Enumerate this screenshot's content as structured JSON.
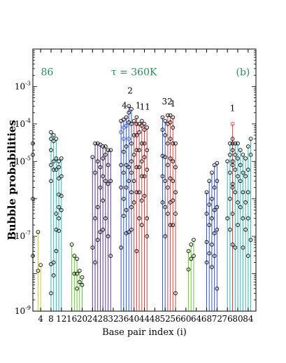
{
  "chart_data": {
    "type": "scatter",
    "ylabel": "Bubble probabilities",
    "xlabel": "Base pair index (i)",
    "yscale": "log",
    "ylim": [
      1e-09,
      0.01
    ],
    "xlim": [
      1,
      87
    ],
    "grid": false,
    "x_ticks": [
      "4",
      "8",
      "12",
      "16",
      "20",
      "24",
      "28",
      "32",
      "36",
      "40",
      "44",
      "48",
      "52",
      "56",
      "60",
      "64",
      "68",
      "72",
      "76",
      "80",
      "84"
    ],
    "x_tick_values": [
      4,
      8,
      12,
      16,
      20,
      24,
      28,
      32,
      36,
      40,
      44,
      48,
      52,
      56,
      60,
      64,
      68,
      72,
      76,
      80,
      84
    ],
    "y_ticks": [
      {
        "value": 1e-09,
        "mantissa": "10",
        "exp": "-9"
      },
      {
        "value": 1e-07,
        "mantissa": "10",
        "exp": "-7"
      },
      {
        "value": 1e-05,
        "mantissa": "10",
        "exp": "-5"
      },
      {
        "value": 0.0001,
        "mantissa": "10",
        "exp": "-4"
      },
      {
        "value": 0.001,
        "mantissa": "10",
        "exp": "-3"
      }
    ],
    "annotations": [
      {
        "text": "86",
        "x": 6.5,
        "y": 0.002,
        "color": "#2e8b57"
      },
      {
        "text": "τ = 360K",
        "x": 40,
        "y": 0.002,
        "color": "#2e8b57"
      },
      {
        "text": "(b)",
        "x": 82,
        "y": 0.002,
        "color": "#2e8b57"
      },
      {
        "text": "2",
        "x": 38.5,
        "y": 0.00065,
        "color": "#000000"
      },
      {
        "text": "4",
        "x": 36.3,
        "y": 0.00026,
        "color": "#000000"
      },
      {
        "text": "1",
        "x": 41.6,
        "y": 0.00026,
        "color": "#000000"
      },
      {
        "text": "11",
        "x": 44.2,
        "y": 0.00024,
        "color": "#000000"
      },
      {
        "text": "32",
        "x": 52.8,
        "y": 0.00033,
        "color": "#000000"
      },
      {
        "text": "1",
        "x": 55.0,
        "y": 0.00029,
        "color": "#000000"
      },
      {
        "text": "1",
        "x": 78.0,
        "y": 0.00022,
        "color": "#000000"
      }
    ],
    "series": [
      {
        "color": "#cccc33",
        "points": [
          [
            1,
            3e-05
          ],
          [
            1,
            1.5e-05
          ],
          [
            1,
            1e-06
          ],
          [
            1,
            3e-08
          ],
          [
            3,
            1.3e-07
          ],
          [
            3,
            1.2e-08
          ],
          [
            4,
            1.7e-08
          ]
        ]
      },
      {
        "color": "#33b5b5",
        "points": [
          [
            8,
            6e-05
          ],
          [
            8,
            4e-05
          ],
          [
            8,
            2e-05
          ],
          [
            8,
            8e-06
          ],
          [
            8,
            3e-06
          ],
          [
            8,
            1.8e-08
          ],
          [
            8,
            3e-09
          ],
          [
            9,
            3.5e-05
          ],
          [
            9,
            5e-05
          ],
          [
            9,
            1e-05
          ],
          [
            9,
            6e-06
          ],
          [
            9,
            2e-08
          ],
          [
            9,
            9e-09
          ],
          [
            10,
            4e-05
          ],
          [
            10,
            1.2e-05
          ],
          [
            10,
            6e-06
          ],
          [
            10,
            4e-07
          ],
          [
            10,
            1.5e-07
          ],
          [
            10,
            4e-08
          ],
          [
            11,
            1e-05
          ],
          [
            11,
            7e-06
          ],
          [
            11,
            3.5e-06
          ],
          [
            11,
            1.3e-06
          ],
          [
            11,
            6e-07
          ],
          [
            11,
            3e-07
          ],
          [
            11,
            1.4e-07
          ],
          [
            12,
            1.2e-05
          ],
          [
            12,
            4e-06
          ],
          [
            12,
            1.2e-06
          ],
          [
            12,
            5e-07
          ]
        ]
      },
      {
        "color": "#66cc33",
        "points": [
          [
            16,
            6e-08
          ],
          [
            17,
            3e-08
          ],
          [
            17,
            1e-08
          ],
          [
            18,
            2.5e-08
          ],
          [
            18,
            4e-09
          ],
          [
            18,
            1e-08
          ],
          [
            19,
            1.2e-08
          ],
          [
            19,
            6e-09
          ],
          [
            20,
            8e-09
          ],
          [
            20,
            5e-09
          ]
        ]
      },
      {
        "color": "#5b3a8f",
        "points": [
          [
            24,
            1.3e-05
          ],
          [
            24,
            5e-08
          ],
          [
            25,
            3e-05
          ],
          [
            25,
            5e-06
          ],
          [
            25,
            3e-07
          ],
          [
            25,
            2e-08
          ],
          [
            26,
            3e-05
          ],
          [
            26,
            1e-05
          ],
          [
            26,
            6e-07
          ],
          [
            26,
            8e-08
          ],
          [
            27,
            2.8e-05
          ],
          [
            27,
            7e-06
          ],
          [
            27,
            2e-06
          ],
          [
            27,
            1.3e-07
          ],
          [
            28,
            2.5e-05
          ],
          [
            28,
            1.2e-05
          ],
          [
            28,
            4e-06
          ],
          [
            28,
            9e-07
          ],
          [
            28,
            1.5e-07
          ],
          [
            29,
            2.5e-05
          ],
          [
            29,
            1.5e-05
          ],
          [
            29,
            3e-06
          ],
          [
            29,
            3e-07
          ],
          [
            30,
            2e-05
          ],
          [
            30,
            8e-06
          ],
          [
            30,
            2.5e-06
          ],
          [
            30,
            1e-07
          ],
          [
            31,
            2e-05
          ],
          [
            31,
            3e-06
          ],
          [
            31,
            3e-08
          ]
        ]
      },
      {
        "color": "#3355cc",
        "points": [
          [
            35,
            0.00012
          ],
          [
            35,
            6e-05
          ],
          [
            35,
            8e-06
          ],
          [
            35,
            2e-06
          ],
          [
            35,
            5e-08
          ],
          [
            36,
            0.00013
          ],
          [
            36,
            8e-05
          ],
          [
            36,
            4e-05
          ],
          [
            36,
            1.8e-05
          ],
          [
            36,
            5e-06
          ],
          [
            36,
            1e-06
          ],
          [
            36,
            3.5e-07
          ],
          [
            37,
            0.00015
          ],
          [
            37,
            9e-05
          ],
          [
            37,
            2.5e-05
          ],
          [
            37,
            8e-06
          ],
          [
            37,
            2e-06
          ],
          [
            37,
            5e-07
          ],
          [
            37,
            1.2e-07
          ],
          [
            38,
            0.0003
          ],
          [
            38,
            0.0002
          ],
          [
            38,
            0.00011
          ],
          [
            38,
            4e-05
          ],
          [
            38,
            7e-06
          ],
          [
            38,
            3e-06
          ],
          [
            38,
            1.3e-07
          ],
          [
            39,
            0.00025
          ],
          [
            39,
            0.0001
          ],
          [
            39,
            3e-05
          ],
          [
            39,
            1e-05
          ],
          [
            39,
            5e-06
          ],
          [
            39,
            1.5e-06
          ],
          [
            39,
            6e-07
          ],
          [
            39,
            1.5e-07
          ]
        ]
      },
      {
        "color": "#d94040",
        "points": [
          [
            40,
            0.00012
          ],
          [
            40,
            5e-05
          ],
          [
            40,
            1.5e-05
          ],
          [
            40,
            3e-06
          ],
          [
            40,
            8e-07
          ],
          [
            41,
            0.00015
          ],
          [
            41,
            0.0001
          ],
          [
            41,
            5e-05
          ],
          [
            41,
            2e-05
          ],
          [
            41,
            7e-06
          ],
          [
            41,
            1.5e-06
          ],
          [
            41,
            4e-08
          ],
          [
            42,
            0.0001
          ],
          [
            42,
            6e-05
          ],
          [
            42,
            2e-05
          ],
          [
            42,
            7e-06
          ],
          [
            42,
            1.5e-06
          ],
          [
            42,
            3e-07
          ],
          [
            43,
            0.00012
          ],
          [
            43,
            9e-05
          ],
          [
            43,
            3e-05
          ],
          [
            43,
            1e-05
          ],
          [
            43,
            4e-06
          ],
          [
            43,
            9e-07
          ],
          [
            43,
            2e-07
          ],
          [
            44,
            0.0001
          ],
          [
            44,
            7e-05
          ],
          [
            44,
            3e-05
          ],
          [
            44,
            1.3e-05
          ],
          [
            44,
            4e-06
          ],
          [
            44,
            1.2e-06
          ],
          [
            45,
            8e-05
          ],
          [
            45,
            2e-05
          ],
          [
            45,
            6e-06
          ],
          [
            45,
            3e-07
          ],
          [
            45,
            1e-07
          ]
        ]
      },
      {
        "color": "#d94040",
        "points": [
          [
            53,
            0.00017
          ],
          [
            53,
            0.0001
          ],
          [
            53,
            3e-05
          ],
          [
            53,
            8e-06
          ],
          [
            53,
            2e-06
          ],
          [
            53,
            4e-07
          ],
          [
            54,
            0.00017
          ],
          [
            54,
            0.00011
          ],
          [
            54,
            4e-05
          ],
          [
            54,
            1.2e-05
          ],
          [
            54,
            3.5e-06
          ],
          [
            54,
            8e-07
          ],
          [
            54,
            2e-07
          ],
          [
            55,
            0.00015
          ],
          [
            55,
            8e-05
          ],
          [
            55,
            3e-05
          ],
          [
            55,
            1e-05
          ],
          [
            55,
            3e-06
          ],
          [
            55,
            9e-07
          ],
          [
            55,
            2e-07
          ],
          [
            56,
            3e-05
          ],
          [
            56,
            7e-06
          ],
          [
            56,
            1.5e-06
          ],
          [
            56,
            4e-07
          ],
          [
            56,
            3e-09
          ]
        ]
      },
      {
        "color": "#3355cc",
        "points": [
          [
            51,
            0.00015
          ],
          [
            51,
            7e-05
          ],
          [
            51,
            1.4e-05
          ],
          [
            51,
            4e-06
          ],
          [
            51,
            8e-07
          ],
          [
            52,
            0.00012
          ],
          [
            52,
            5e-05
          ],
          [
            52,
            1.3e-05
          ],
          [
            52,
            3e-06
          ],
          [
            52,
            6e-07
          ],
          [
            52,
            1e-07
          ]
        ]
      },
      {
        "color": "#66cc33",
        "points": [
          [
            61,
            4e-08
          ],
          [
            61,
            1.3e-08
          ],
          [
            62,
            6e-08
          ],
          [
            62,
            2.5e-08
          ],
          [
            63,
            8e-08
          ],
          [
            63,
            3e-08
          ]
        ]
      },
      {
        "color": "#3355cc",
        "points": [
          [
            68,
            1.5e-06
          ],
          [
            68,
            4e-07
          ],
          [
            68,
            7e-08
          ],
          [
            68,
            2e-08
          ],
          [
            69,
            3e-06
          ],
          [
            69,
            7e-07
          ],
          [
            69,
            2e-07
          ],
          [
            69,
            3.5e-08
          ],
          [
            70,
            5e-06
          ],
          [
            70,
            1e-06
          ],
          [
            70,
            3e-07
          ],
          [
            70,
            6e-08
          ],
          [
            70,
            1.5e-08
          ],
          [
            71,
            8e-06
          ],
          [
            71,
            2e-06
          ],
          [
            71,
            5e-07
          ],
          [
            71,
            1.2e-07
          ],
          [
            71,
            3e-08
          ],
          [
            72,
            9e-06
          ],
          [
            72,
            3e-06
          ],
          [
            72,
            6e-07
          ],
          [
            72,
            1.5e-07
          ],
          [
            72,
            4e-09
          ]
        ]
      },
      {
        "color": "#33b5b5",
        "points": [
          [
            76,
            1e-05
          ],
          [
            76,
            3e-07
          ],
          [
            77,
            3e-05
          ],
          [
            77,
            1.5e-05
          ],
          [
            77,
            5e-06
          ],
          [
            77,
            1e-06
          ],
          [
            77,
            1.5e-07
          ],
          [
            78,
            4e-05
          ],
          [
            78,
            2e-05
          ],
          [
            78,
            8e-06
          ],
          [
            78,
            2.5e-06
          ],
          [
            78,
            4e-07
          ],
          [
            79,
            3e-05
          ],
          [
            79,
            1.5e-05
          ],
          [
            79,
            6e-06
          ],
          [
            79,
            1.5e-06
          ],
          [
            79,
            5e-08
          ],
          [
            80,
            3e-05
          ],
          [
            80,
            1.2e-05
          ],
          [
            80,
            4e-06
          ],
          [
            80,
            8e-07
          ],
          [
            80,
            2e-07
          ],
          [
            81,
            2e-05
          ],
          [
            81,
            8e-06
          ],
          [
            81,
            3e-06
          ],
          [
            81,
            6e-07
          ],
          [
            82,
            1.5e-05
          ],
          [
            82,
            5e-06
          ],
          [
            82,
            1.5e-06
          ],
          [
            82,
            3e-07
          ],
          [
            82,
            5e-08
          ],
          [
            83,
            1.2e-05
          ],
          [
            83,
            4e-06
          ],
          [
            83,
            8e-07
          ],
          [
            83,
            1.5e-07
          ],
          [
            84,
            2.5e-05
          ],
          [
            84,
            6e-06
          ],
          [
            84,
            1.5e-06
          ],
          [
            84,
            3e-07
          ],
          [
            84,
            3e-08
          ],
          [
            85,
            4e-05
          ],
          [
            85,
            1.5e-05
          ],
          [
            85,
            8e-08
          ]
        ]
      },
      {
        "color": "#d94040",
        "points": [
          [
            78,
            0.0001
          ],
          [
            78,
            3e-05
          ],
          [
            78,
            1e-05
          ],
          [
            78,
            2e-06
          ],
          [
            78,
            6e-08
          ]
        ]
      }
    ]
  }
}
